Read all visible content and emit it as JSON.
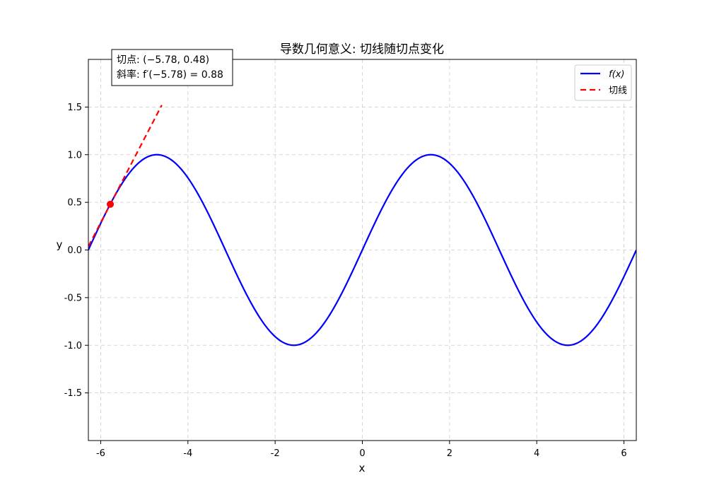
{
  "chart_data": {
    "type": "line",
    "title": "导数几何意义: 切线随切点变化",
    "xlabel": "x",
    "ylabel": "y",
    "xlim": [
      -6.283,
      6.283
    ],
    "ylim": [
      -2.0,
      2.0
    ],
    "xticks": [
      -6,
      -4,
      -2,
      0,
      2,
      4,
      6
    ],
    "xtick_labels": [
      "-6",
      "-4",
      "-2",
      "0",
      "2",
      "4",
      "6"
    ],
    "yticks": [
      -1.5,
      -1.0,
      -0.5,
      0.0,
      0.5,
      1.0,
      1.5
    ],
    "ytick_labels": [
      "-1.5",
      "-1.0",
      "-0.5",
      "0.0",
      "0.5",
      "1.0",
      "1.5"
    ],
    "grid": true,
    "legend_position": "top-right",
    "series": [
      {
        "name": "f(x)",
        "function": "sin(x)",
        "style": "solid",
        "color": "#0000ff",
        "x_range": [
          -6.283,
          6.283
        ]
      },
      {
        "name": "切线",
        "style": "dashed",
        "color": "#ff0000",
        "x": [
          -6.28,
          -4.6
        ],
        "y": [
          0.04,
          1.52
        ]
      }
    ],
    "point": {
      "x": -5.78,
      "y": 0.48,
      "color": "#ff0000"
    },
    "annotation": {
      "line1": "切点: (−5.78, 0.48)",
      "line2": "斜率: f′(−5.78) = 0.88"
    },
    "legend": [
      {
        "label": "f(x)",
        "color": "#0000ff",
        "style": "solid"
      },
      {
        "label": "切线",
        "color": "#ff0000",
        "style": "dashed"
      }
    ]
  }
}
